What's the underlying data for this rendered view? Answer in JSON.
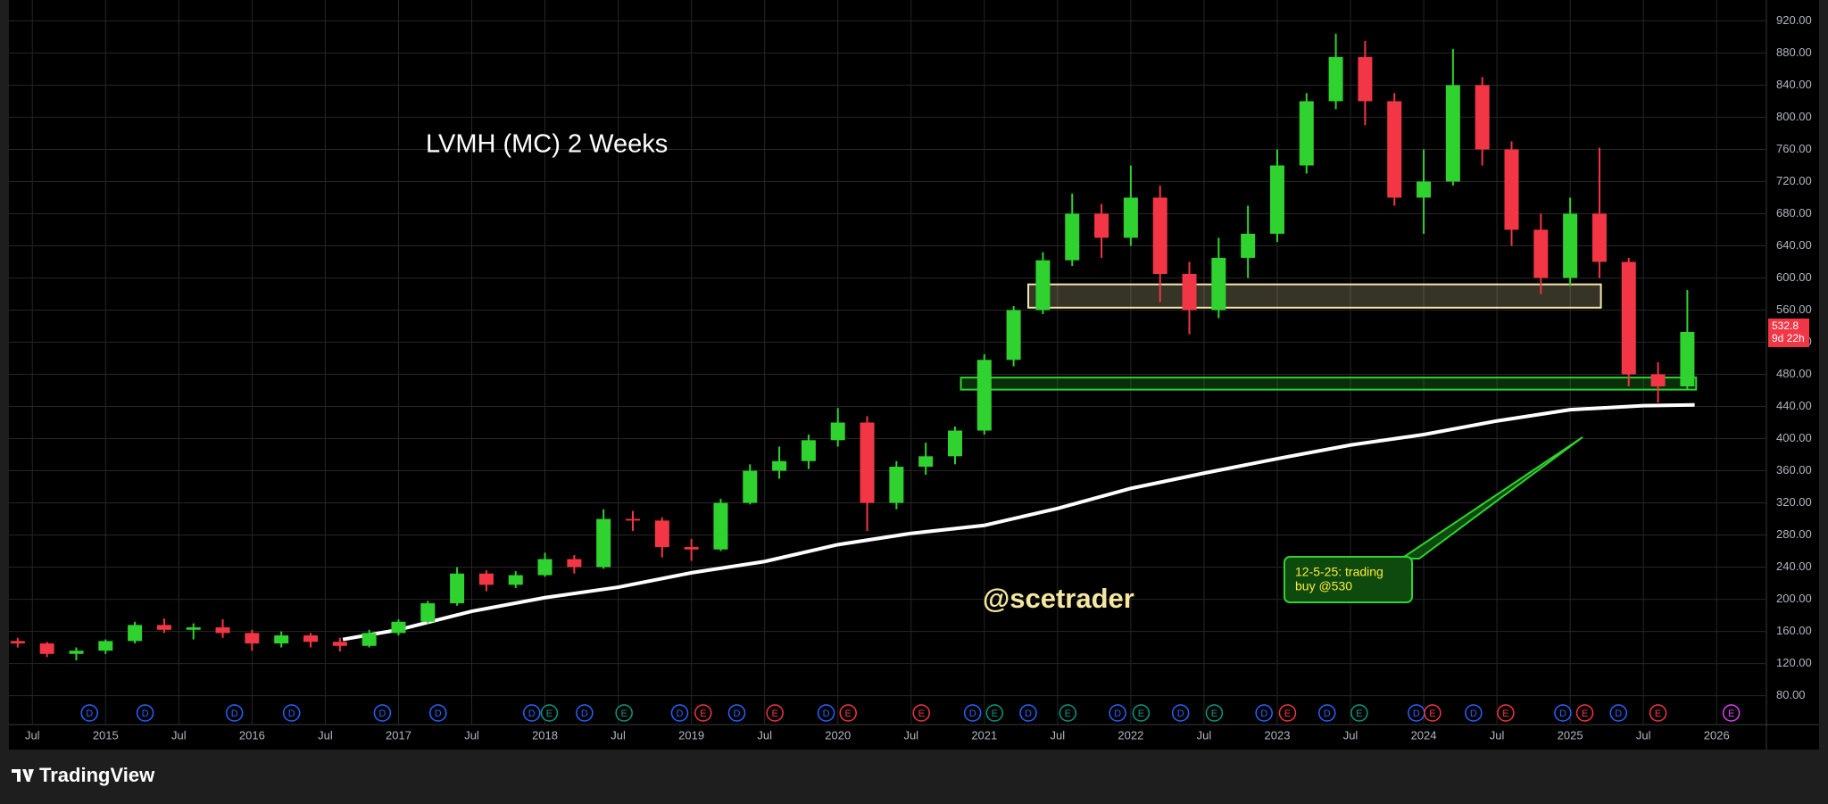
{
  "chart_data": {
    "type": "candlestick",
    "title": "LVMH (MC) 2 Weeks",
    "watermark": "@scetrader",
    "brand": "TradingView",
    "xlim": [
      2014.34,
      2026.34
    ],
    "ylim": [
      44,
      946
    ],
    "xticks": [
      {
        "value": 2014.5,
        "label": "Jul"
      },
      2015,
      {
        "value": 2015.5,
        "label": "Jul"
      },
      2016,
      {
        "value": 2016.5,
        "label": "Jul"
      },
      2017,
      {
        "value": 2017.5,
        "label": "Jul"
      },
      2018,
      {
        "value": 2018.5,
        "label": "Jul"
      },
      2019,
      {
        "value": 2019.5,
        "label": "Jul"
      },
      2020,
      {
        "value": 2020.5,
        "label": "Jul"
      },
      2021,
      {
        "value": 2021.5,
        "label": "Jul"
      },
      2022,
      {
        "value": 2022.5,
        "label": "Jul"
      },
      2023,
      {
        "value": 2023.5,
        "label": "Jul"
      },
      2024,
      {
        "value": 2024.5,
        "label": "Jul"
      },
      2025,
      {
        "value": 2025.5,
        "label": "Jul"
      },
      2026
    ],
    "yticks": [
      {
        "value": 80,
        "label": "80.00"
      },
      {
        "value": 120,
        "label": "120.00"
      },
      {
        "value": 160,
        "label": "160.00"
      },
      {
        "value": 200,
        "label": "200.00"
      },
      {
        "value": 240,
        "label": "240.00"
      },
      {
        "value": 280,
        "label": "280.00"
      },
      {
        "value": 320,
        "label": "320.00"
      },
      {
        "value": 360,
        "label": "360.00"
      },
      {
        "value": 400,
        "label": "400.00"
      },
      {
        "value": 440,
        "label": "440.00"
      },
      {
        "value": 480,
        "label": "480.00"
      },
      {
        "value": 520,
        "label": "520.00"
      },
      {
        "value": 560,
        "label": "560.00"
      },
      {
        "value": 600,
        "label": "600.00"
      },
      {
        "value": 640,
        "label": "640.00"
      },
      {
        "value": 680,
        "label": "680.00"
      },
      {
        "value": 720,
        "label": "720.00"
      },
      {
        "value": 760,
        "label": "760.00"
      },
      {
        "value": 800,
        "label": "800.00"
      },
      {
        "value": 840,
        "label": "840.00"
      },
      {
        "value": 880,
        "label": "880.00"
      },
      {
        "value": 920,
        "label": "920.00"
      }
    ],
    "grid": true,
    "up_color": "#2fd22f",
    "down_color": "#f23645",
    "x": [
      2014.4,
      2014.6,
      2014.8,
      2015.0,
      2015.2,
      2015.4,
      2015.6,
      2015.8,
      2016.0,
      2016.2,
      2016.4,
      2016.6,
      2016.8,
      2017.0,
      2017.2,
      2017.4,
      2017.6,
      2017.8,
      2018.0,
      2018.2,
      2018.4,
      2018.6,
      2018.8,
      2019.0,
      2019.2,
      2019.4,
      2019.6,
      2019.8,
      2020.0,
      2020.2,
      2020.4,
      2020.6,
      2020.8,
      2021.0,
      2021.2,
      2021.4,
      2021.6,
      2021.8,
      2022.0,
      2022.2,
      2022.4,
      2022.6,
      2022.8,
      2023.0,
      2023.2,
      2023.4,
      2023.6,
      2023.8,
      2024.0,
      2024.2,
      2024.4,
      2024.6,
      2024.8,
      2025.0,
      2025.2,
      2025.4,
      2025.6,
      2025.8
    ],
    "candles": [
      [
        148,
        152,
        140,
        145
      ],
      [
        145,
        147,
        128,
        132
      ],
      [
        132,
        140,
        124,
        136
      ],
      [
        136,
        150,
        132,
        148
      ],
      [
        148,
        172,
        145,
        168
      ],
      [
        168,
        176,
        158,
        162
      ],
      [
        162,
        170,
        150,
        165
      ],
      [
        165,
        175,
        152,
        158
      ],
      [
        158,
        162,
        136,
        145
      ],
      [
        145,
        160,
        140,
        155
      ],
      [
        155,
        158,
        140,
        147
      ],
      [
        147,
        152,
        135,
        142
      ],
      [
        142,
        162,
        140,
        158
      ],
      [
        158,
        175,
        155,
        172
      ],
      [
        172,
        198,
        170,
        195
      ],
      [
        195,
        240,
        192,
        232
      ],
      [
        232,
        236,
        210,
        218
      ],
      [
        218,
        235,
        214,
        230
      ],
      [
        230,
        258,
        228,
        250
      ],
      [
        250,
        255,
        232,
        240
      ],
      [
        240,
        312,
        238,
        300
      ],
      [
        300,
        310,
        285,
        298
      ],
      [
        298,
        302,
        252,
        265
      ],
      [
        265,
        275,
        248,
        262
      ],
      [
        262,
        325,
        260,
        320
      ],
      [
        320,
        368,
        318,
        360
      ],
      [
        360,
        390,
        350,
        372
      ],
      [
        372,
        405,
        362,
        398
      ],
      [
        398,
        438,
        390,
        420
      ],
      [
        420,
        428,
        285,
        320
      ],
      [
        320,
        372,
        312,
        365
      ],
      [
        365,
        395,
        355,
        378
      ],
      [
        378,
        415,
        368,
        410
      ],
      [
        410,
        505,
        405,
        498
      ],
      [
        498,
        565,
        490,
        560
      ],
      [
        560,
        632,
        555,
        622
      ],
      [
        622,
        705,
        615,
        680
      ],
      [
        680,
        692,
        625,
        650
      ],
      [
        650,
        740,
        640,
        700
      ],
      [
        700,
        715,
        570,
        605
      ],
      [
        605,
        620,
        530,
        560
      ],
      [
        560,
        650,
        550,
        625
      ],
      [
        625,
        690,
        600,
        655
      ],
      [
        655,
        760,
        645,
        740
      ],
      [
        740,
        830,
        730,
        820
      ],
      [
        820,
        904,
        810,
        875
      ],
      [
        875,
        895,
        790,
        820
      ],
      [
        820,
        830,
        690,
        700
      ],
      [
        700,
        760,
        655,
        720
      ],
      [
        720,
        885,
        715,
        840
      ],
      [
        840,
        850,
        740,
        760
      ],
      [
        760,
        770,
        640,
        660
      ],
      [
        660,
        680,
        580,
        600
      ],
      [
        600,
        700,
        590,
        680
      ],
      [
        680,
        762,
        600,
        620
      ],
      [
        620,
        625,
        465,
        480
      ],
      [
        480,
        495,
        445,
        465
      ],
      [
        465,
        585,
        460,
        532.8
      ]
    ],
    "ma": {
      "color": "#ffffff",
      "x": [
        2016.62,
        2017.0,
        2017.5,
        2018.0,
        2018.5,
        2019.0,
        2019.5,
        2020.0,
        2020.5,
        2021.0,
        2021.5,
        2022.0,
        2022.5,
        2023.0,
        2023.5,
        2024.0,
        2024.5,
        2025.0,
        2025.5,
        2025.85
      ],
      "values": [
        150,
        162,
        185,
        202,
        215,
        233,
        247,
        268,
        282,
        292,
        313,
        338,
        357,
        375,
        392,
        405,
        422,
        436,
        441,
        442
      ]
    },
    "zones": [
      {
        "x": [
          2021.3,
          2025.21
        ],
        "y": [
          563,
          592
        ],
        "color": "#f5e6b0"
      },
      {
        "x": [
          2020.84,
          2025.86
        ],
        "y": [
          461,
          476
        ],
        "color": "#2fd22f"
      }
    ],
    "annotation": {
      "lines": [
        "12-5-25: trading",
        "buy @530"
      ]
    },
    "last_price": 532.8,
    "countdown": "9d 22h",
    "dividends": {
      "label": "D",
      "color": "#2962ff",
      "x": [
        2014.89,
        2015.27,
        2015.88,
        2016.27,
        2016.89,
        2017.27,
        2017.91,
        2018.27,
        2018.92,
        2019.31,
        2019.92,
        2020.92,
        2021.3,
        2021.91,
        2022.34,
        2022.91,
        2023.34,
        2023.95,
        2024.34,
        2024.95,
        2025.33
      ]
    },
    "earnings": {
      "label": "E",
      "x": [
        2018.03,
        2018.54,
        2019.08,
        2019.57,
        2020.07,
        2020.57,
        2021.07,
        2021.57,
        2022.07,
        2022.57,
        2023.07,
        2023.56,
        2024.06,
        2024.56,
        2025.1,
        2025.6,
        2026.1
      ],
      "colors": [
        "#089981",
        "#089981",
        "#f23645",
        "#f23645",
        "#f23645",
        "#f23645",
        "#089981",
        "#089981",
        "#089981",
        "#089981",
        "#f23645",
        "#089981",
        "#f23645",
        "#f23645",
        "#f23645",
        "#f23645",
        "#e040fb"
      ]
    }
  }
}
